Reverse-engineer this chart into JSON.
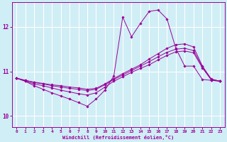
{
  "xlabel": "Windchill (Refroidissement éolien,°C)",
  "bg_color": "#d0eef5",
  "grid_color": "#ffffff",
  "line_color": "#990099",
  "xlim": [
    -0.5,
    23.5
  ],
  "ylim": [
    9.75,
    12.55
  ],
  "xticks": [
    0,
    1,
    2,
    3,
    4,
    5,
    6,
    7,
    8,
    9,
    10,
    11,
    12,
    13,
    14,
    15,
    16,
    17,
    18,
    19,
    20,
    21,
    22,
    23
  ],
  "yticks": [
    10,
    11,
    12
  ],
  "series": {
    "line1": [
      10.85,
      10.78,
      10.68,
      10.6,
      10.52,
      10.45,
      10.38,
      10.3,
      10.22,
      10.38,
      10.58,
      10.9,
      12.22,
      11.78,
      12.08,
      12.35,
      12.38,
      12.18,
      11.52,
      11.12,
      11.12,
      10.82,
      10.8,
      10.78
    ],
    "line2": [
      10.85,
      10.8,
      10.76,
      10.73,
      10.7,
      10.68,
      10.65,
      10.63,
      10.6,
      10.62,
      10.72,
      10.84,
      10.95,
      11.05,
      11.15,
      11.28,
      11.4,
      11.52,
      11.6,
      11.62,
      11.55,
      11.12,
      10.83,
      10.78
    ],
    "line3": [
      10.85,
      10.8,
      10.75,
      10.72,
      10.68,
      10.65,
      10.62,
      10.6,
      10.57,
      10.6,
      10.7,
      10.82,
      10.92,
      11.02,
      11.12,
      11.22,
      11.33,
      11.43,
      11.5,
      11.52,
      11.47,
      11.1,
      10.82,
      10.78
    ],
    "line4": [
      10.85,
      10.78,
      10.72,
      10.68,
      10.63,
      10.58,
      10.54,
      10.5,
      10.47,
      10.52,
      10.65,
      10.78,
      10.88,
      10.98,
      11.07,
      11.15,
      11.26,
      11.36,
      11.44,
      11.46,
      11.42,
      11.08,
      10.81,
      10.78
    ]
  }
}
